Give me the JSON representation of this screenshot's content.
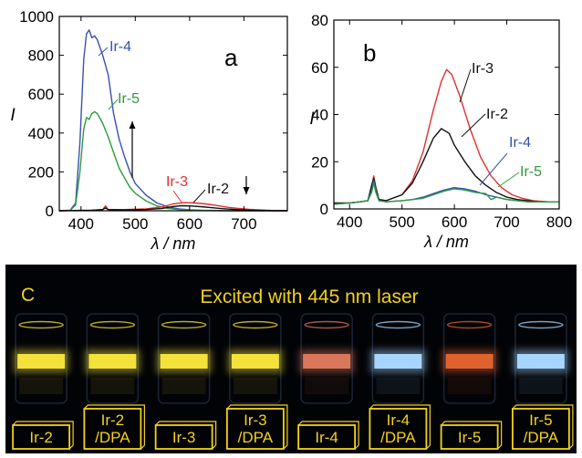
{
  "chart_data": [
    {
      "panel": "a",
      "type": "line",
      "xlabel": "λ / nm",
      "ylabel": "I",
      "xlim": [
        360,
        780
      ],
      "ylim": [
        0,
        1000
      ],
      "xticks": [
        "400",
        "500",
        "600",
        "700"
      ],
      "yticks": [
        "0",
        "200",
        "400",
        "600",
        "800",
        "1000"
      ],
      "series": [
        {
          "name": "Ir-4",
          "color": "#3a50b0",
          "x": [
            360,
            380,
            390,
            398,
            405,
            410,
            415,
            420,
            425,
            430,
            440,
            450,
            460,
            470,
            480,
            490,
            500,
            520,
            540,
            560,
            580,
            600,
            620,
            640,
            660,
            680,
            700,
            720,
            740,
            760,
            780
          ],
          "y": [
            0,
            3,
            40,
            350,
            780,
            910,
            930,
            890,
            900,
            880,
            800,
            700,
            500,
            370,
            280,
            200,
            140,
            80,
            40,
            20,
            10,
            5,
            3,
            2,
            1,
            0,
            0,
            0,
            0,
            0,
            0
          ]
        },
        {
          "name": "Ir-5",
          "color": "#2e9a3e",
          "x": [
            360,
            380,
            390,
            398,
            405,
            410,
            415,
            420,
            425,
            430,
            440,
            450,
            460,
            470,
            480,
            490,
            500,
            520,
            540,
            560,
            580,
            600,
            620,
            640,
            660,
            680,
            700,
            720,
            740,
            760,
            780
          ],
          "y": [
            0,
            2,
            30,
            200,
            420,
            480,
            470,
            500,
            510,
            500,
            450,
            380,
            300,
            220,
            170,
            120,
            90,
            50,
            25,
            12,
            6,
            3,
            2,
            1,
            0,
            0,
            0,
            0,
            0,
            0,
            0
          ]
        },
        {
          "name": "Ir-3",
          "color": "#e23030",
          "x": [
            360,
            380,
            400,
            420,
            440,
            445,
            450,
            480,
            520,
            550,
            570,
            590,
            610,
            630,
            650,
            670,
            690,
            710,
            730,
            750,
            780
          ],
          "y": [
            0,
            1,
            2,
            3,
            6,
            25,
            6,
            6,
            10,
            20,
            35,
            42,
            40,
            35,
            27,
            18,
            12,
            7,
            4,
            2,
            1
          ]
        },
        {
          "name": "Ir-2",
          "color": "#111111",
          "x": [
            360,
            380,
            400,
            420,
            440,
            445,
            450,
            480,
            520,
            550,
            570,
            585,
            600,
            620,
            640,
            660,
            680,
            700,
            720,
            740,
            780
          ],
          "y": [
            0,
            1,
            2,
            3,
            6,
            15,
            6,
            4,
            6,
            12,
            22,
            26,
            25,
            21,
            16,
            11,
            7,
            4,
            2,
            1,
            0
          ]
        }
      ],
      "annotations": [
        {
          "text": "a"
        },
        {
          "text": "Ir-4"
        },
        {
          "text": "Ir-5"
        },
        {
          "text": "Ir-3"
        },
        {
          "text": "Ir-2"
        }
      ]
    },
    {
      "panel": "b",
      "type": "line",
      "xlabel": "λ / nm",
      "ylabel": "I",
      "xlim": [
        370,
        800
      ],
      "ylim": [
        0,
        80
      ],
      "xticks": [
        "400",
        "500",
        "600",
        "700",
        "800"
      ],
      "yticks": [
        "0",
        "20",
        "40",
        "60",
        "80"
      ],
      "series": [
        {
          "name": "Ir-3",
          "color": "#e23030",
          "x": [
            370,
            400,
            420,
            435,
            442,
            446,
            450,
            456,
            470,
            500,
            520,
            540,
            560,
            575,
            585,
            595,
            610,
            630,
            650,
            670,
            690,
            710,
            730,
            750,
            780,
            800
          ],
          "y": [
            2,
            2.5,
            3,
            3.5,
            9,
            14,
            9,
            4,
            3.5,
            6,
            12,
            24,
            42,
            54,
            59,
            57,
            48,
            34,
            22,
            14,
            9,
            6,
            4.5,
            3.5,
            3,
            3
          ]
        },
        {
          "name": "Ir-2",
          "color": "#111111",
          "x": [
            370,
            400,
            420,
            435,
            442,
            446,
            450,
            456,
            470,
            500,
            520,
            540,
            560,
            575,
            590,
            600,
            620,
            640,
            660,
            680,
            700,
            720,
            740,
            760,
            780,
            800
          ],
          "y": [
            2.5,
            2.5,
            3,
            3.5,
            10,
            13,
            9,
            4,
            3.5,
            6,
            11,
            20,
            30,
            34,
            32,
            27,
            20,
            14,
            10,
            7,
            5,
            4,
            3.5,
            3,
            3,
            3
          ]
        },
        {
          "name": "Ir-4",
          "color": "#3a50b0",
          "x": [
            370,
            400,
            420,
            435,
            442,
            446,
            450,
            456,
            470,
            500,
            520,
            540,
            560,
            580,
            600,
            620,
            640,
            660,
            680,
            700,
            720,
            740,
            760,
            780,
            800
          ],
          "y": [
            2,
            2.5,
            3,
            3.5,
            8,
            12,
            8,
            3.5,
            3,
            3.5,
            4,
            5,
            6.5,
            8,
            9,
            8.5,
            7.5,
            6,
            5,
            4,
            3.5,
            3,
            3,
            3,
            3
          ]
        },
        {
          "name": "Ir-5",
          "color": "#2e9a3e",
          "x": [
            370,
            400,
            420,
            435,
            442,
            446,
            450,
            456,
            470,
            500,
            520,
            540,
            560,
            580,
            600,
            620,
            640,
            660,
            670,
            680,
            700,
            720,
            740,
            760,
            780,
            800
          ],
          "y": [
            2,
            2.5,
            3,
            3.5,
            7,
            11,
            7,
            3.5,
            3,
            3.5,
            4,
            4.5,
            6,
            7.5,
            8.5,
            8,
            7,
            6.5,
            4,
            5,
            4,
            3.5,
            3,
            3,
            3,
            3
          ]
        }
      ],
      "annotations": [
        {
          "text": "b"
        },
        {
          "text": "Ir-3"
        },
        {
          "text": "Ir-2"
        },
        {
          "text": "Ir-4"
        },
        {
          "text": "Ir-5"
        }
      ]
    }
  ],
  "photo": {
    "panel_label": "C",
    "title": "Excited with 445 nm laser",
    "title_color": "#f3d21a",
    "samples": [
      {
        "label": "Ir-2",
        "emission_color": "#f2e23a"
      },
      {
        "label": "Ir-2 /DPA",
        "emission_color": "#f2e23a"
      },
      {
        "label": "Ir-3",
        "emission_color": "#f2e23a"
      },
      {
        "label": "Ir-3 /DPA",
        "emission_color": "#f2e23a"
      },
      {
        "label": "Ir-4",
        "emission_color": "#d9775a"
      },
      {
        "label": "Ir-4 /DPA",
        "emission_color": "#a6d6ff"
      },
      {
        "label": "Ir-5",
        "emission_color": "#e0622e"
      },
      {
        "label": "Ir-5 /DPA",
        "emission_color": "#a6d6ff"
      }
    ]
  }
}
